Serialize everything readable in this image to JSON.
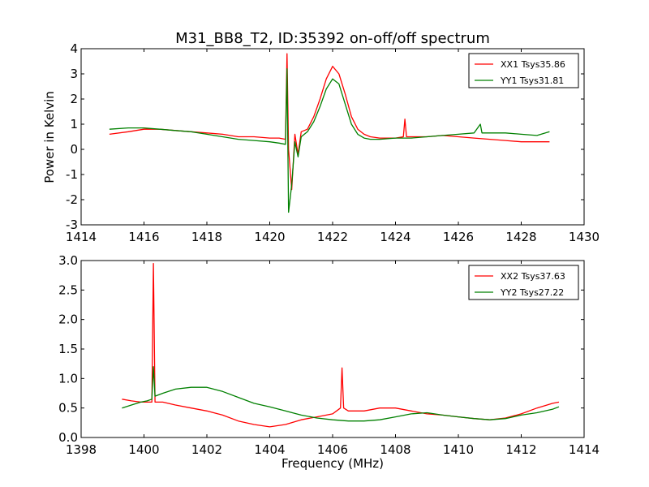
{
  "figure": {
    "title": "M31_BB8_T2, ID:35392 on-off/off spectrum",
    "ylabel": "Power in Kelvin",
    "xlabel": "Frequency (MHz)"
  },
  "chart_data": [
    {
      "type": "line",
      "title": "M31_BB8_T2, ID:35392 on-off/off spectrum",
      "xlabel": "",
      "ylabel": "Power in Kelvin",
      "xlim": [
        1414,
        1430
      ],
      "ylim": [
        -3,
        4
      ],
      "xticks": [
        1414,
        1416,
        1418,
        1420,
        1422,
        1424,
        1426,
        1428,
        1430
      ],
      "yticks": [
        -3,
        -2,
        -1,
        0,
        1,
        2,
        3,
        4
      ],
      "grid": false,
      "legend_position": "top-right",
      "series": [
        {
          "name": "XX1 Tsys35.86",
          "color": "#ff0000",
          "x": [
            1414.9,
            1415.5,
            1416.0,
            1416.5,
            1417.0,
            1417.5,
            1418.0,
            1418.5,
            1419.0,
            1419.5,
            1420.0,
            1420.3,
            1420.5,
            1420.55,
            1420.6,
            1420.7,
            1420.8,
            1420.9,
            1421.0,
            1421.2,
            1421.4,
            1421.6,
            1421.8,
            1422.0,
            1422.2,
            1422.4,
            1422.6,
            1422.8,
            1423.0,
            1423.2,
            1423.5,
            1424.0,
            1424.25,
            1424.3,
            1424.35,
            1424.5,
            1425.0,
            1425.5,
            1426.0,
            1426.5,
            1427.0,
            1427.5,
            1428.0,
            1428.5,
            1428.9
          ],
          "y": [
            0.6,
            0.7,
            0.8,
            0.8,
            0.75,
            0.7,
            0.65,
            0.6,
            0.5,
            0.5,
            0.45,
            0.45,
            0.4,
            3.8,
            0.0,
            -1.6,
            0.6,
            -0.2,
            0.7,
            0.8,
            1.3,
            2.0,
            2.8,
            3.3,
            3.0,
            2.2,
            1.3,
            0.8,
            0.6,
            0.5,
            0.45,
            0.45,
            0.5,
            1.2,
            0.5,
            0.5,
            0.5,
            0.55,
            0.5,
            0.45,
            0.4,
            0.35,
            0.3,
            0.3,
            0.3
          ]
        },
        {
          "name": "YY1 Tsys31.81",
          "color": "#008000",
          "x": [
            1414.9,
            1415.5,
            1416.0,
            1416.5,
            1417.0,
            1417.5,
            1418.0,
            1418.5,
            1419.0,
            1419.5,
            1420.0,
            1420.3,
            1420.5,
            1420.55,
            1420.6,
            1420.7,
            1420.8,
            1420.9,
            1421.0,
            1421.2,
            1421.4,
            1421.6,
            1421.8,
            1422.0,
            1422.2,
            1422.4,
            1422.6,
            1422.8,
            1423.0,
            1423.2,
            1423.5,
            1424.0,
            1424.5,
            1425.0,
            1425.5,
            1426.0,
            1426.5,
            1426.7,
            1426.75,
            1427.0,
            1427.5,
            1428.0,
            1428.5,
            1428.9
          ],
          "y": [
            0.8,
            0.85,
            0.85,
            0.8,
            0.75,
            0.7,
            0.6,
            0.5,
            0.4,
            0.35,
            0.3,
            0.25,
            0.2,
            3.2,
            -2.5,
            -1.4,
            0.3,
            -0.3,
            0.5,
            0.7,
            1.1,
            1.7,
            2.4,
            2.8,
            2.6,
            1.8,
            1.0,
            0.6,
            0.45,
            0.4,
            0.4,
            0.45,
            0.45,
            0.5,
            0.55,
            0.6,
            0.65,
            1.0,
            0.65,
            0.65,
            0.65,
            0.6,
            0.55,
            0.7
          ]
        }
      ]
    },
    {
      "type": "line",
      "title": "",
      "xlabel": "Frequency (MHz)",
      "ylabel": "",
      "xlim": [
        1398,
        1414
      ],
      "ylim": [
        0.0,
        3.0
      ],
      "xticks": [
        1398,
        1400,
        1402,
        1404,
        1406,
        1408,
        1410,
        1412,
        1414
      ],
      "yticks": [
        0.0,
        0.5,
        1.0,
        1.5,
        2.0,
        2.5,
        3.0
      ],
      "grid": false,
      "legend_position": "top-right",
      "series": [
        {
          "name": "XX2 Tsys37.63",
          "color": "#ff0000",
          "x": [
            1399.3,
            1399.6,
            1399.9,
            1400.1,
            1400.25,
            1400.3,
            1400.35,
            1400.6,
            1401.0,
            1401.5,
            1402.0,
            1402.5,
            1403.0,
            1403.5,
            1404.0,
            1404.5,
            1405.0,
            1405.5,
            1406.0,
            1406.25,
            1406.3,
            1406.35,
            1406.5,
            1407.0,
            1407.5,
            1408.0,
            1408.5,
            1409.0,
            1409.5,
            1410.0,
            1410.5,
            1411.0,
            1411.5,
            1412.0,
            1412.5,
            1413.0,
            1413.2
          ],
          "y": [
            0.65,
            0.62,
            0.6,
            0.6,
            0.6,
            2.95,
            0.6,
            0.6,
            0.55,
            0.5,
            0.45,
            0.38,
            0.28,
            0.22,
            0.18,
            0.22,
            0.3,
            0.35,
            0.4,
            0.5,
            1.18,
            0.5,
            0.45,
            0.45,
            0.5,
            0.5,
            0.45,
            0.4,
            0.38,
            0.35,
            0.32,
            0.3,
            0.33,
            0.4,
            0.5,
            0.58,
            0.6
          ]
        },
        {
          "name": "YY2 Tsys27.22",
          "color": "#008000",
          "x": [
            1399.3,
            1399.6,
            1399.9,
            1400.1,
            1400.25,
            1400.3,
            1400.35,
            1400.6,
            1401.0,
            1401.5,
            1402.0,
            1402.5,
            1403.0,
            1403.5,
            1404.0,
            1404.5,
            1405.0,
            1405.5,
            1406.0,
            1406.5,
            1407.0,
            1407.5,
            1408.0,
            1408.5,
            1409.0,
            1409.5,
            1410.0,
            1410.5,
            1411.0,
            1411.5,
            1412.0,
            1412.5,
            1413.0,
            1413.2
          ],
          "y": [
            0.5,
            0.55,
            0.6,
            0.62,
            0.65,
            1.2,
            0.7,
            0.75,
            0.82,
            0.85,
            0.85,
            0.78,
            0.68,
            0.58,
            0.52,
            0.45,
            0.38,
            0.33,
            0.3,
            0.28,
            0.28,
            0.3,
            0.35,
            0.4,
            0.42,
            0.38,
            0.35,
            0.32,
            0.3,
            0.32,
            0.38,
            0.42,
            0.48,
            0.52
          ]
        }
      ]
    }
  ]
}
